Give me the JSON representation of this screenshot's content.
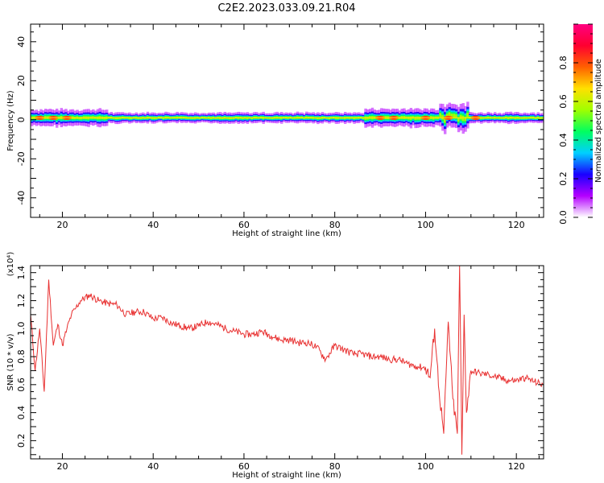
{
  "figure": {
    "title": "C2E2.2023.033.09.21.R04"
  },
  "chart_data": [
    {
      "type": "heatmap",
      "xlabel": "Height of straight line (km)",
      "ylabel": "Frequency (Hz)",
      "xlim": [
        13,
        126
      ],
      "ylim": [
        -50,
        49
      ],
      "xticks": [
        "20",
        "40",
        "60",
        "80",
        "100",
        "120"
      ],
      "yticks": [
        "-40",
        "-20",
        "0",
        "20",
        "40"
      ],
      "colorbar": {
        "label": "Normalized spectral amplitude",
        "range": [
          0,
          1
        ],
        "ticks": [
          "0.0",
          "0.2",
          "0.4",
          "0.6",
          "0.8"
        ],
        "colors": [
          "#ffffff",
          "#b400ff",
          "#1a00ff",
          "#00cfff",
          "#00ff60",
          "#a0ff00",
          "#ffe000",
          "#ff6000",
          "#ff0030",
          "#ff0080"
        ]
      },
      "band": {
        "center_hz": 1,
        "half_width_hz": 2,
        "peak_amplitude": 0.85,
        "hotspots_km": [
          15,
          18,
          21,
          90,
          93,
          100,
          105,
          111
        ],
        "disturbance_km": [
          103,
          109
        ]
      }
    },
    {
      "type": "line",
      "xlabel": "Height of straight line (km)",
      "ylabel": "SNR (10 * v/v)",
      "yscale_label": "(x10⁴)",
      "xlim": [
        13,
        126
      ],
      "ylim": [
        0.07,
        1.45
      ],
      "xticks": [
        "20",
        "40",
        "60",
        "80",
        "100",
        "120"
      ],
      "yticks": [
        "0.2",
        "0.4",
        "0.6",
        "0.8",
        "1.0",
        "1.2",
        "1.4"
      ],
      "color": "#e83030",
      "x": [
        13,
        14,
        15,
        16,
        17,
        18,
        19,
        20,
        21,
        22,
        23,
        24,
        26,
        28,
        30,
        32,
        34,
        36,
        38,
        40,
        42,
        44,
        46,
        48,
        50,
        52,
        54,
        56,
        58,
        60,
        62,
        64,
        66,
        68,
        70,
        72,
        74,
        76,
        78,
        80,
        82,
        84,
        86,
        88,
        90,
        92,
        94,
        96,
        98,
        100,
        101,
        102,
        103,
        104,
        105,
        106,
        107,
        107.5,
        108,
        108.5,
        109,
        110,
        112,
        114,
        116,
        118,
        120,
        122,
        124,
        126
      ],
      "y": [
        1.1,
        0.7,
        1.0,
        0.55,
        1.35,
        0.88,
        1.03,
        0.88,
        1.0,
        1.1,
        1.15,
        1.2,
        1.24,
        1.2,
        1.18,
        1.17,
        1.1,
        1.12,
        1.12,
        1.07,
        1.08,
        1.04,
        1.02,
        1.0,
        1.02,
        1.05,
        1.03,
        1.0,
        0.98,
        0.96,
        0.96,
        0.98,
        0.95,
        0.92,
        0.92,
        0.9,
        0.9,
        0.87,
        0.78,
        0.88,
        0.85,
        0.82,
        0.82,
        0.8,
        0.8,
        0.78,
        0.78,
        0.75,
        0.73,
        0.72,
        0.65,
        1.0,
        0.55,
        0.25,
        1.05,
        0.5,
        0.25,
        1.45,
        0.1,
        1.1,
        0.4,
        0.7,
        0.68,
        0.67,
        0.65,
        0.63,
        0.63,
        0.65,
        0.62,
        0.6
      ]
    }
  ]
}
